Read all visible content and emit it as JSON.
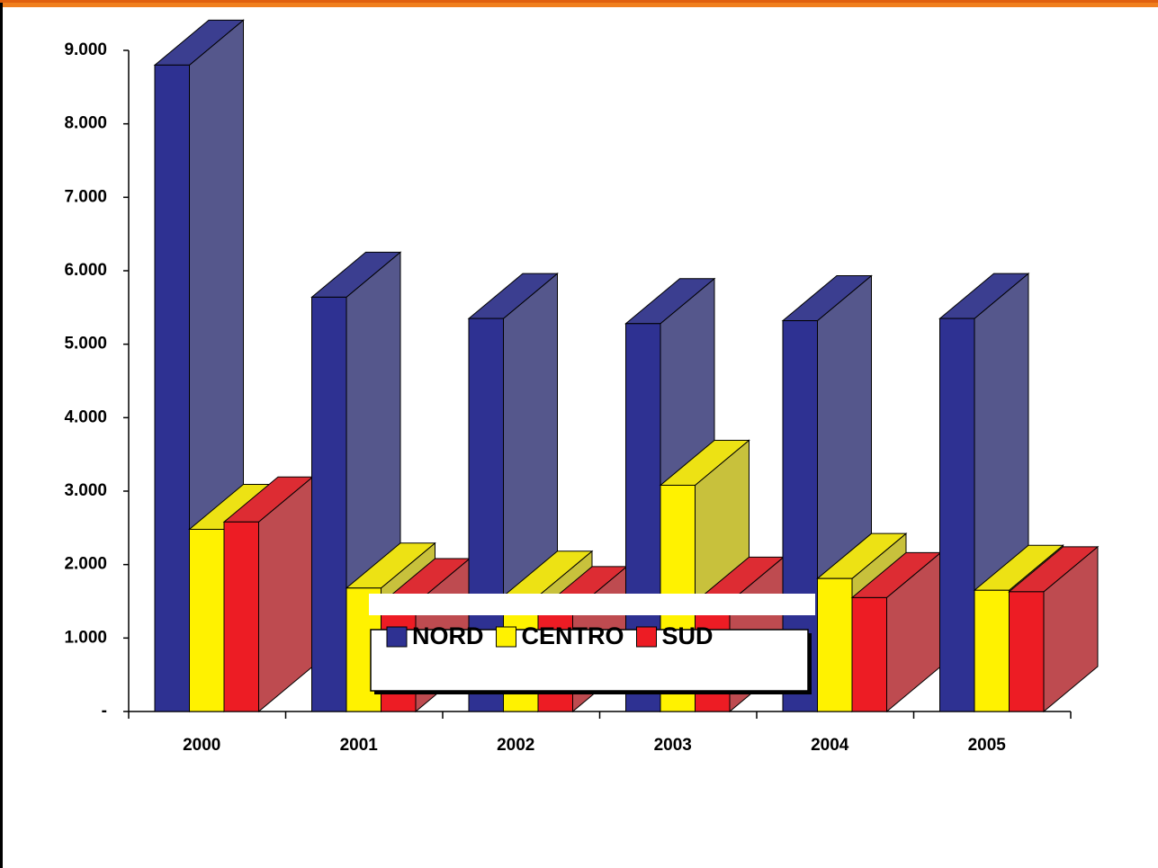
{
  "chart_data": {
    "type": "bar3d",
    "categories": [
      "2000",
      "2001",
      "2002",
      "2003",
      "2004",
      "2005"
    ],
    "series": [
      {
        "name": "NORD",
        "color": "#2e3192",
        "values": [
          8800,
          5640,
          5350,
          5280,
          5320,
          5350
        ]
      },
      {
        "name": "CENTRO",
        "color": "#fff200",
        "values": [
          2480,
          1680,
          1570,
          3080,
          1810,
          1650
        ]
      },
      {
        "name": "SUD",
        "color": "#ed1c24",
        "values": [
          2580,
          1470,
          1360,
          1490,
          1550,
          1630
        ]
      }
    ],
    "ylim": [
      0,
      9000
    ],
    "yticks": [
      {
        "value": 0,
        "label": "-"
      },
      {
        "value": 1000,
        "label": "1.000"
      },
      {
        "value": 2000,
        "label": "2.000"
      },
      {
        "value": 3000,
        "label": "3.000"
      },
      {
        "value": 4000,
        "label": "4.000"
      },
      {
        "value": 5000,
        "label": "5.000"
      },
      {
        "value": 6000,
        "label": "6.000"
      },
      {
        "value": 7000,
        "label": "7.000"
      },
      {
        "value": 8000,
        "label": "8.000"
      },
      {
        "value": 9000,
        "label": "9.000"
      }
    ],
    "grid": false,
    "legend": "bottom"
  }
}
